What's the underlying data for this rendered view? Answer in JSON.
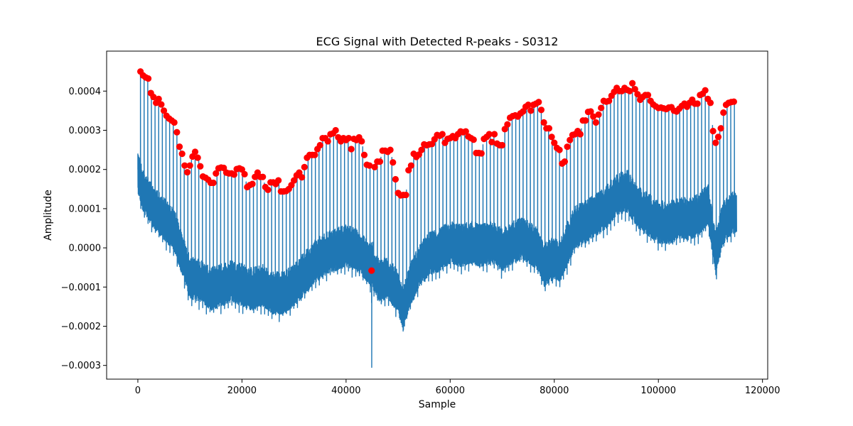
{
  "chart_data": {
    "type": "line",
    "title": "ECG Signal with Detected R-peaks - S0312",
    "xlabel": "Sample",
    "ylabel": "Amplitude",
    "xlim": [
      -6000,
      121000
    ],
    "ylim": [
      -0.000335,
      0.000502
    ],
    "xticks": [
      0,
      20000,
      40000,
      60000,
      80000,
      100000,
      120000
    ],
    "xtick_labels": [
      "0",
      "20000",
      "40000",
      "60000",
      "80000",
      "100000",
      "120000"
    ],
    "yticks": [
      -0.0003,
      -0.0002,
      -0.0001,
      0.0,
      0.0001,
      0.0002,
      0.0003,
      0.0004
    ],
    "ytick_labels": [
      "−0.0003",
      "−0.0002",
      "−0.0001",
      "0.0000",
      "0.0001",
      "0.0002",
      "0.0003",
      "0.0004"
    ],
    "grid": false,
    "beat_interval": 700,
    "series": [
      {
        "name": "ECG signal",
        "color": "#1f77b4",
        "x_range": [
          0,
          115000
        ],
        "baseline_envelope": {
          "x": [
            0,
            1000,
            2000,
            3000,
            5000,
            7000,
            9000,
            10000,
            12000,
            14000,
            16000,
            18000,
            20000,
            22000,
            24000,
            26000,
            28000,
            30000,
            32000,
            34000,
            36000,
            38000,
            40000,
            42000,
            43500,
            44800,
            45000,
            45200,
            46500,
            48000,
            50000,
            51000,
            52000,
            54000,
            56000,
            58000,
            60000,
            62000,
            64000,
            66000,
            68000,
            70000,
            72000,
            74000,
            76000,
            77000,
            78000,
            79000,
            80000,
            81000,
            82000,
            84000,
            86000,
            88000,
            90000,
            92000,
            94000,
            96000,
            98000,
            100000,
            102000,
            104000,
            106000,
            108000,
            109500,
            110500,
            111000,
            112000,
            113000,
            115000
          ],
          "y": [
            0.00016,
            0.00011,
            9e-05,
            7e-05,
            4e-05,
            1e-05,
            -7e-05,
            -0.00011,
            -0.00012,
            -0.00014,
            -0.00013,
            -0.00012,
            -0.00013,
            -0.00014,
            -0.00013,
            -0.00015,
            -0.00015,
            -0.00013,
            -0.0001,
            -7e-05,
            -5e-05,
            -4e-05,
            -3e-05,
            -4e-05,
            -6e-05,
            -8e-05,
            -6e-05,
            -9e-05,
            -0.00012,
            -0.00011,
            -0.00015,
            -0.00019,
            -0.00014,
            -8e-05,
            -5e-05,
            -4e-05,
            -2e-05,
            -3e-05,
            -2e-05,
            -3e-05,
            -2e-05,
            -4e-05,
            -2e-05,
            -1e-05,
            -3e-05,
            -4e-05,
            -8e-05,
            -7e-05,
            -6e-05,
            -7e-05,
            -4e-05,
            2e-05,
            3e-05,
            5e-05,
            7e-05,
            0.0001,
            0.00011,
            7e-05,
            5e-05,
            3e-05,
            3e-05,
            4e-05,
            4e-05,
            5e-05,
            8e-05,
            -1e-05,
            -5e-05,
            1e-05,
            4e-05,
            6e-05
          ]
        },
        "artifact": {
          "x": 44900,
          "y_min": -0.000305,
          "y_max": -0.00014
        }
      },
      {
        "name": "Detected R-peaks",
        "color": "#ff0000",
        "marker": "circle",
        "points": [
          [
            500,
            0.00045
          ],
          [
            1000,
            0.00044
          ],
          [
            1500,
            0.000435
          ],
          [
            2000,
            0.000432
          ],
          [
            2500,
            0.000395
          ],
          [
            3000,
            0.000385
          ],
          [
            3500,
            0.00037
          ],
          [
            4000,
            0.00038
          ],
          [
            4500,
            0.000366
          ],
          [
            5000,
            0.00035
          ],
          [
            5500,
            0.000337
          ],
          [
            6000,
            0.00033
          ],
          [
            6500,
            0.000325
          ],
          [
            7000,
            0.00032
          ],
          [
            7500,
            0.000295
          ],
          [
            8000,
            0.000258
          ],
          [
            8500,
            0.00024
          ],
          [
            9000,
            0.00021
          ],
          [
            9500,
            0.000193
          ],
          [
            10000,
            0.00021
          ],
          [
            10500,
            0.000233
          ],
          [
            11000,
            0.000245
          ],
          [
            11500,
            0.00023
          ],
          [
            12000,
            0.000208
          ],
          [
            12500,
            0.000182
          ],
          [
            13000,
            0.000179
          ],
          [
            13500,
            0.000174
          ],
          [
            14000,
            0.000166
          ],
          [
            14500,
            0.000166
          ],
          [
            15000,
            0.00019
          ],
          [
            15500,
            0.000203
          ],
          [
            16000,
            0.000205
          ],
          [
            16500,
            0.000204
          ],
          [
            17000,
            0.000192
          ],
          [
            17500,
            0.00019
          ],
          [
            18000,
            0.00019
          ],
          [
            18500,
            0.000187
          ],
          [
            19000,
            0.000201
          ],
          [
            19500,
            0.000203
          ],
          [
            20000,
            0.0002
          ],
          [
            20500,
            0.000188
          ],
          [
            21000,
            0.000155
          ],
          [
            21500,
            0.00016
          ],
          [
            22000,
            0.000163
          ],
          [
            22500,
            0.000181
          ],
          [
            23000,
            0.000192
          ],
          [
            23500,
            0.000181
          ],
          [
            24000,
            0.000181
          ],
          [
            24500,
            0.000155
          ],
          [
            25000,
            0.000148
          ],
          [
            25500,
            0.000167
          ],
          [
            26000,
            0.000167
          ],
          [
            26500,
            0.000163
          ],
          [
            27000,
            0.000172
          ],
          [
            27500,
            0.000144
          ],
          [
            28000,
            0.000144
          ],
          [
            28500,
            0.000145
          ],
          [
            29000,
            0.00015
          ],
          [
            29500,
            0.00016
          ],
          [
            30000,
            0.000172
          ],
          [
            30500,
            0.000185
          ],
          [
            31000,
            0.000192
          ],
          [
            31500,
            0.00018
          ],
          [
            32000,
            0.000206
          ],
          [
            32500,
            0.00023
          ],
          [
            33000,
            0.000237
          ],
          [
            33500,
            0.000237
          ],
          [
            34000,
            0.000237
          ],
          [
            34500,
            0.000252
          ],
          [
            35000,
            0.000262
          ],
          [
            35500,
            0.00028
          ],
          [
            36000,
            0.00028
          ],
          [
            36500,
            0.000272
          ],
          [
            37000,
            0.00029
          ],
          [
            37500,
            0.000292
          ],
          [
            38000,
            0.0003
          ],
          [
            38500,
            0.000282
          ],
          [
            39000,
            0.000272
          ],
          [
            39500,
            0.00028
          ],
          [
            40000,
            0.000275
          ],
          [
            40500,
            0.00028
          ],
          [
            41000,
            0.000252
          ],
          [
            41500,
            0.000278
          ],
          [
            42000,
            0.000275
          ],
          [
            42500,
            0.000282
          ],
          [
            43000,
            0.000272
          ],
          [
            43500,
            0.000237
          ],
          [
            44000,
            0.000212
          ],
          [
            44500,
            0.00021
          ],
          [
            44900,
            -5.8e-05
          ],
          [
            45500,
            0.000206
          ],
          [
            46000,
            0.00022
          ],
          [
            46500,
            0.00022
          ],
          [
            47000,
            0.000248
          ],
          [
            47500,
            0.000248
          ],
          [
            48000,
            0.000245
          ],
          [
            48500,
            0.00025
          ],
          [
            49000,
            0.000218
          ],
          [
            49500,
            0.000175
          ],
          [
            50000,
            0.00014
          ],
          [
            50500,
            0.000134
          ],
          [
            51000,
            0.000135
          ],
          [
            51500,
            0.000135
          ],
          [
            52000,
            0.000198
          ],
          [
            52500,
            0.00021
          ],
          [
            53000,
            0.00024
          ],
          [
            53500,
            0.000232
          ],
          [
            54000,
            0.000238
          ],
          [
            54500,
            0.00025
          ],
          [
            55000,
            0.000264
          ],
          [
            55500,
            0.000262
          ],
          [
            56000,
            0.000264
          ],
          [
            56500,
            0.000265
          ],
          [
            57000,
            0.000277
          ],
          [
            57500,
            0.000288
          ],
          [
            58000,
            0.000286
          ],
          [
            58500,
            0.00029
          ],
          [
            59000,
            0.000268
          ],
          [
            59500,
            0.000278
          ],
          [
            60000,
            0.00028
          ],
          [
            60500,
            0.000285
          ],
          [
            61000,
            0.00028
          ],
          [
            61500,
            0.00029
          ],
          [
            62000,
            0.000297
          ],
          [
            62500,
            0.000295
          ],
          [
            63000,
            0.000297
          ],
          [
            63500,
            0.000284
          ],
          [
            64000,
            0.00028
          ],
          [
            64500,
            0.000276
          ],
          [
            65000,
            0.000242
          ],
          [
            65500,
            0.000242
          ],
          [
            66000,
            0.000241
          ],
          [
            66500,
            0.000278
          ],
          [
            67000,
            0.000283
          ],
          [
            67500,
            0.00029
          ],
          [
            68000,
            0.00027
          ],
          [
            68500,
            0.00029
          ],
          [
            69000,
            0.000266
          ],
          [
            69500,
            0.000262
          ],
          [
            70000,
            0.000262
          ],
          [
            70500,
            0.000303
          ],
          [
            71000,
            0.000315
          ],
          [
            71500,
            0.000332
          ],
          [
            72000,
            0.000336
          ],
          [
            72500,
            0.000338
          ],
          [
            73000,
            0.000335
          ],
          [
            73500,
            0.000343
          ],
          [
            74000,
            0.000348
          ],
          [
            74500,
            0.00036
          ],
          [
            75000,
            0.000365
          ],
          [
            75500,
            0.00035
          ],
          [
            76000,
            0.000365
          ],
          [
            76500,
            0.000368
          ],
          [
            77000,
            0.000372
          ],
          [
            77500,
            0.000352
          ],
          [
            78000,
            0.00032
          ],
          [
            78500,
            0.000305
          ],
          [
            79000,
            0.000305
          ],
          [
            79500,
            0.000283
          ],
          [
            80000,
            0.000268
          ],
          [
            80500,
            0.000255
          ],
          [
            81000,
            0.00025
          ],
          [
            81500,
            0.000215
          ],
          [
            82000,
            0.00022
          ],
          [
            82500,
            0.000258
          ],
          [
            83000,
            0.000275
          ],
          [
            83500,
            0.000288
          ],
          [
            84000,
            0.00029
          ],
          [
            84500,
            0.000298
          ],
          [
            85000,
            0.00029
          ],
          [
            85500,
            0.000325
          ],
          [
            86000,
            0.000325
          ],
          [
            86500,
            0.000347
          ],
          [
            87000,
            0.000348
          ],
          [
            87500,
            0.000335
          ],
          [
            88000,
            0.00032
          ],
          [
            88500,
            0.00034
          ],
          [
            89000,
            0.000357
          ],
          [
            89500,
            0.000375
          ],
          [
            90000,
            0.000373
          ],
          [
            90500,
            0.000375
          ],
          [
            91000,
            0.000388
          ],
          [
            91500,
            0.000398
          ],
          [
            92000,
            0.000408
          ],
          [
            92500,
            0.0004
          ],
          [
            93000,
            0.0004
          ],
          [
            93500,
            0.000408
          ],
          [
            94000,
            0.000403
          ],
          [
            94500,
            0.0004
          ],
          [
            95000,
            0.00042
          ],
          [
            95500,
            0.000405
          ],
          [
            96000,
            0.000392
          ],
          [
            96500,
            0.000378
          ],
          [
            97000,
            0.000385
          ],
          [
            97500,
            0.00039
          ],
          [
            98000,
            0.00039
          ],
          [
            98500,
            0.000375
          ],
          [
            99000,
            0.000366
          ],
          [
            99500,
            0.000361
          ],
          [
            100000,
            0.000357
          ],
          [
            100500,
            0.000358
          ],
          [
            101000,
            0.000356
          ],
          [
            101500,
            0.000354
          ],
          [
            102000,
            0.000358
          ],
          [
            102500,
            0.000359
          ],
          [
            103000,
            0.00035
          ],
          [
            103500,
            0.000348
          ],
          [
            104000,
            0.000355
          ],
          [
            104500,
            0.000362
          ],
          [
            105000,
            0.000368
          ],
          [
            105500,
            0.00036
          ],
          [
            106000,
            0.00037
          ],
          [
            106500,
            0.000378
          ],
          [
            107000,
            0.000368
          ],
          [
            107500,
            0.000368
          ],
          [
            108000,
            0.00039
          ],
          [
            108500,
            0.000393
          ],
          [
            109000,
            0.000402
          ],
          [
            109500,
            0.00038
          ],
          [
            110000,
            0.00037
          ],
          [
            110500,
            0.000298
          ],
          [
            111000,
            0.000268
          ],
          [
            111500,
            0.000283
          ],
          [
            112000,
            0.000305
          ],
          [
            112500,
            0.000345
          ],
          [
            113000,
            0.000365
          ],
          [
            113500,
            0.00037
          ],
          [
            114000,
            0.000372
          ],
          [
            114500,
            0.000373
          ]
        ]
      }
    ]
  }
}
